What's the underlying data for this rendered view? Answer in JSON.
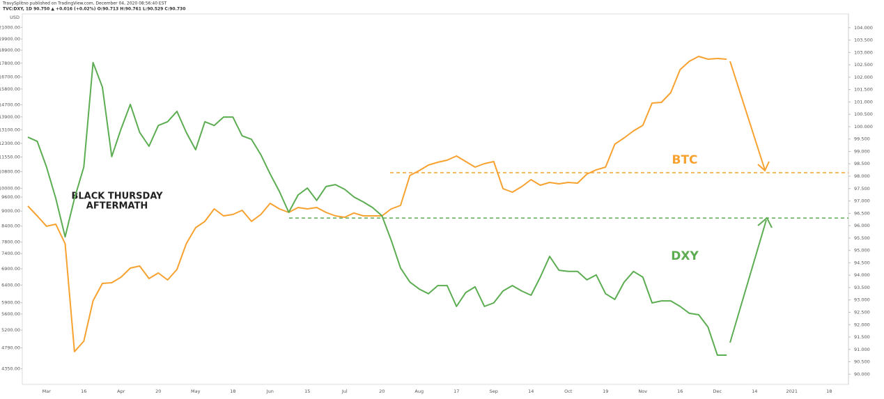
{
  "chart_data": {
    "type": "line",
    "title": "TravySplitno published on TradingView.com, December 04, 2020 08:56:40 EST",
    "subtitle": "TVC:DXY, 1D 90.750 ▲ +0.016 (+0.02%) O:90.713 H:90.761 L:90.529 C:90.730",
    "y_unit": "USD",
    "categories": [
      null,
      null,
      "Mar",
      null,
      null,
      null,
      "16",
      null,
      null,
      null,
      "Apr",
      null,
      null,
      null,
      "20",
      null,
      null,
      null,
      "May",
      null,
      null,
      null,
      "18",
      null,
      null,
      null,
      "Jun",
      null,
      null,
      null,
      "15",
      null,
      null,
      null,
      "Jul",
      null,
      null,
      null,
      "20",
      null,
      null,
      null,
      "Aug",
      null,
      null,
      null,
      "17",
      null,
      null,
      null,
      "Sep",
      null,
      null,
      null,
      "14",
      null,
      null,
      null,
      "Oct",
      null,
      null,
      null,
      "19",
      null,
      null,
      null,
      "Nov",
      null,
      null,
      null,
      "16",
      null,
      null,
      null,
      "Dec",
      null,
      null,
      null,
      "14",
      null,
      null,
      null,
      "2021",
      null,
      null,
      null,
      "18",
      null,
      null,
      null
    ],
    "series": [
      {
        "name": "BTC",
        "color": "#f7a12f",
        "values": [
          9211,
          8805,
          8392,
          8473,
          7744,
          4709,
          4940,
          5952,
          6449,
          6469,
          6638,
          6920,
          6987,
          6595,
          6767,
          6553,
          6876,
          7744,
          8338,
          8583,
          9093,
          8805,
          8862,
          9033,
          8583,
          8862,
          9329,
          9093,
          8947,
          9151,
          9093,
          9151,
          8947,
          8805,
          8749,
          8920,
          8805,
          8805,
          8805,
          9093,
          9240,
          10607,
          10849,
          11131,
          11275,
          11384,
          11606,
          11311,
          11025,
          11202,
          11311,
          9979,
          9821,
          10077,
          10405,
          10141,
          10272,
          10205,
          10272,
          10239,
          10676,
          10885,
          11025,
          12257,
          12616,
          13027,
          13367,
          14812,
          14861,
          15544,
          17280,
          17960,
          18368,
          18135,
          18193,
          18135,
          null,
          null,
          null,
          null,
          null,
          null,
          null,
          null,
          null,
          null,
          null,
          null,
          null,
          null
        ]
      },
      {
        "name": "DXY",
        "color": "#5cad52",
        "axis": "y2",
        "values": [
          99.58,
          99.41,
          98.37,
          97.1,
          95.55,
          97.1,
          98.37,
          102.59,
          101.6,
          98.79,
          99.91,
          100.9,
          99.77,
          99.21,
          100.05,
          100.2,
          100.62,
          99.77,
          99.07,
          100.2,
          100.05,
          100.39,
          100.39,
          99.63,
          99.49,
          98.87,
          98.09,
          97.38,
          96.54,
          97.24,
          97.52,
          97.02,
          97.58,
          97.66,
          97.47,
          97.16,
          96.96,
          96.73,
          96.4,
          95.41,
          94.29,
          93.72,
          93.44,
          93.25,
          93.58,
          93.58,
          92.74,
          93.3,
          93.53,
          92.74,
          92.88,
          93.36,
          93.58,
          93.36,
          93.19,
          93.92,
          94.76,
          94.2,
          94.15,
          94.15,
          93.81,
          94.01,
          93.25,
          93.02,
          93.72,
          94.15,
          93.92,
          92.88,
          92.96,
          92.96,
          92.74,
          92.46,
          92.4,
          91.9,
          90.77,
          90.77,
          null,
          null,
          null,
          null,
          null,
          null,
          null,
          null,
          null,
          null,
          null,
          null,
          null,
          null
        ]
      }
    ],
    "ylim": [
      4100,
      22200
    ],
    "ylog": true,
    "yticks": [
      {
        "value": 21000,
        "label": "21000.00"
      },
      {
        "value": 19900,
        "label": "19900.00"
      },
      {
        "value": 18900,
        "label": "18900.00"
      },
      {
        "value": 17800,
        "label": "17800.00"
      },
      {
        "value": 16700,
        "label": "16700.00"
      },
      {
        "value": 15800,
        "label": "15800.00"
      },
      {
        "value": 14700,
        "label": "14700.00"
      },
      {
        "value": 13900,
        "label": "13900.00"
      },
      {
        "value": 13100,
        "label": "13100.00"
      },
      {
        "value": 12300,
        "label": "12300.00"
      },
      {
        "value": 11550,
        "label": "11550.00"
      },
      {
        "value": 10800,
        "label": "10800.00"
      },
      {
        "value": 10000,
        "label": "10000.00"
      },
      {
        "value": 9600,
        "label": "9600.00"
      },
      {
        "value": 9000,
        "label": "9000.00"
      },
      {
        "value": 8400,
        "label": "8400.00"
      },
      {
        "value": 7800,
        "label": "7800.00"
      },
      {
        "value": 7400,
        "label": "7400.00"
      },
      {
        "value": 6900,
        "label": "6900.00"
      },
      {
        "value": 6400,
        "label": "6400.00"
      },
      {
        "value": 5900,
        "label": "5900.00"
      },
      {
        "value": 5600,
        "label": "5600.00"
      },
      {
        "value": 5200,
        "label": "5200.00"
      },
      {
        "value": 4790,
        "label": "4790.00"
      },
      {
        "value": 4350,
        "label": "4350.00"
      }
    ],
    "y2lim": [
      89.7,
      104.5
    ],
    "y2ticks": [
      {
        "value": 104,
        "label": "104.000"
      },
      {
        "value": 103.5,
        "label": "103.500"
      },
      {
        "value": 103,
        "label": "103.000"
      },
      {
        "value": 102.5,
        "label": "102.500"
      },
      {
        "value": 102,
        "label": "102.000"
      },
      {
        "value": 101.5,
        "label": "101.500"
      },
      {
        "value": 101,
        "label": "101.000"
      },
      {
        "value": 100.5,
        "label": "100.500"
      },
      {
        "value": 100,
        "label": "100.000"
      },
      {
        "value": 99.5,
        "label": "99.500"
      },
      {
        "value": 99,
        "label": "99.000"
      },
      {
        "value": 98.5,
        "label": "98.500"
      },
      {
        "value": 98,
        "label": "98.000"
      },
      {
        "value": 97.5,
        "label": "97.500"
      },
      {
        "value": 97,
        "label": "97.000"
      },
      {
        "value": 96.5,
        "label": "96.500"
      },
      {
        "value": 96,
        "label": "96.000"
      },
      {
        "value": 95.5,
        "label": "95.500"
      },
      {
        "value": 95,
        "label": "95.000"
      },
      {
        "value": 94.5,
        "label": "94.500"
      },
      {
        "value": 94,
        "label": "94.000"
      },
      {
        "value": 93.5,
        "label": "93.500"
      },
      {
        "value": 93,
        "label": "93.000"
      },
      {
        "value": 92.5,
        "label": "92.500"
      },
      {
        "value": 92,
        "label": "92.000"
      },
      {
        "value": 91.5,
        "label": "91.500"
      },
      {
        "value": 91,
        "label": "91.000"
      },
      {
        "value": 90.5,
        "label": "90.500"
      },
      {
        "value": 90,
        "label": "90.000"
      }
    ],
    "annotations": [
      "BLACK THURSDAY",
      "AFTERMATH"
    ],
    "levels": [
      {
        "value": 10745,
        "color": "#f7a12f"
      },
      {
        "value": 96.31,
        "axis": "y2",
        "color": "#5cad52"
      }
    ],
    "grid": false
  }
}
